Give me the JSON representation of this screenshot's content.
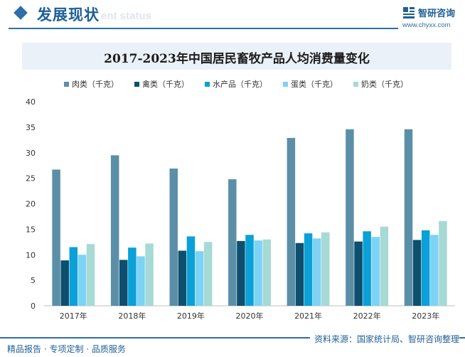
{
  "header": {
    "section_title": "发展现状",
    "section_watermark": "ent status",
    "brand_name": "智研咨询",
    "brand_url": "www.chyxx.com"
  },
  "footer": {
    "left_text": "精品报告 · 专项定制 · 品质服务",
    "source": "资料来源：国家统计局、智研咨询整理"
  },
  "colors": {
    "accent": "#2e6fa7",
    "title_band": "#eaf1f8"
  },
  "chart_data": {
    "type": "bar",
    "title": "2017-2023年中国居民畜牧产品人均消费量变化",
    "xlabel": "",
    "ylabel": "",
    "categories": [
      "2017年",
      "2018年",
      "2019年",
      "2020年",
      "2021年",
      "2022年",
      "2023年"
    ],
    "ylim": [
      0,
      40
    ],
    "yticks": [
      0,
      5,
      10,
      15,
      20,
      25,
      30,
      35,
      40
    ],
    "grid": false,
    "legend_position": "top",
    "series": [
      {
        "name": "肉类（千克）",
        "color": "#5b8fa8",
        "values": [
          26.7,
          29.5,
          26.9,
          24.8,
          32.9,
          34.6,
          34.6
        ]
      },
      {
        "name": "禽类（千克）",
        "color": "#0d4f6e",
        "values": [
          8.9,
          9.0,
          10.8,
          12.7,
          12.3,
          12.6,
          12.9
        ]
      },
      {
        "name": "水产品（千克）",
        "color": "#0aa0d8",
        "values": [
          11.5,
          11.4,
          13.6,
          13.9,
          14.2,
          14.6,
          14.8
        ]
      },
      {
        "name": "蛋类（千克）",
        "color": "#7dd3f5",
        "values": [
          10.0,
          9.7,
          10.7,
          12.8,
          13.2,
          13.5,
          13.9
        ]
      },
      {
        "name": "奶类（千克）",
        "color": "#a6dad4",
        "values": [
          12.1,
          12.2,
          12.5,
          13.0,
          14.4,
          15.5,
          16.6
        ]
      }
    ]
  }
}
